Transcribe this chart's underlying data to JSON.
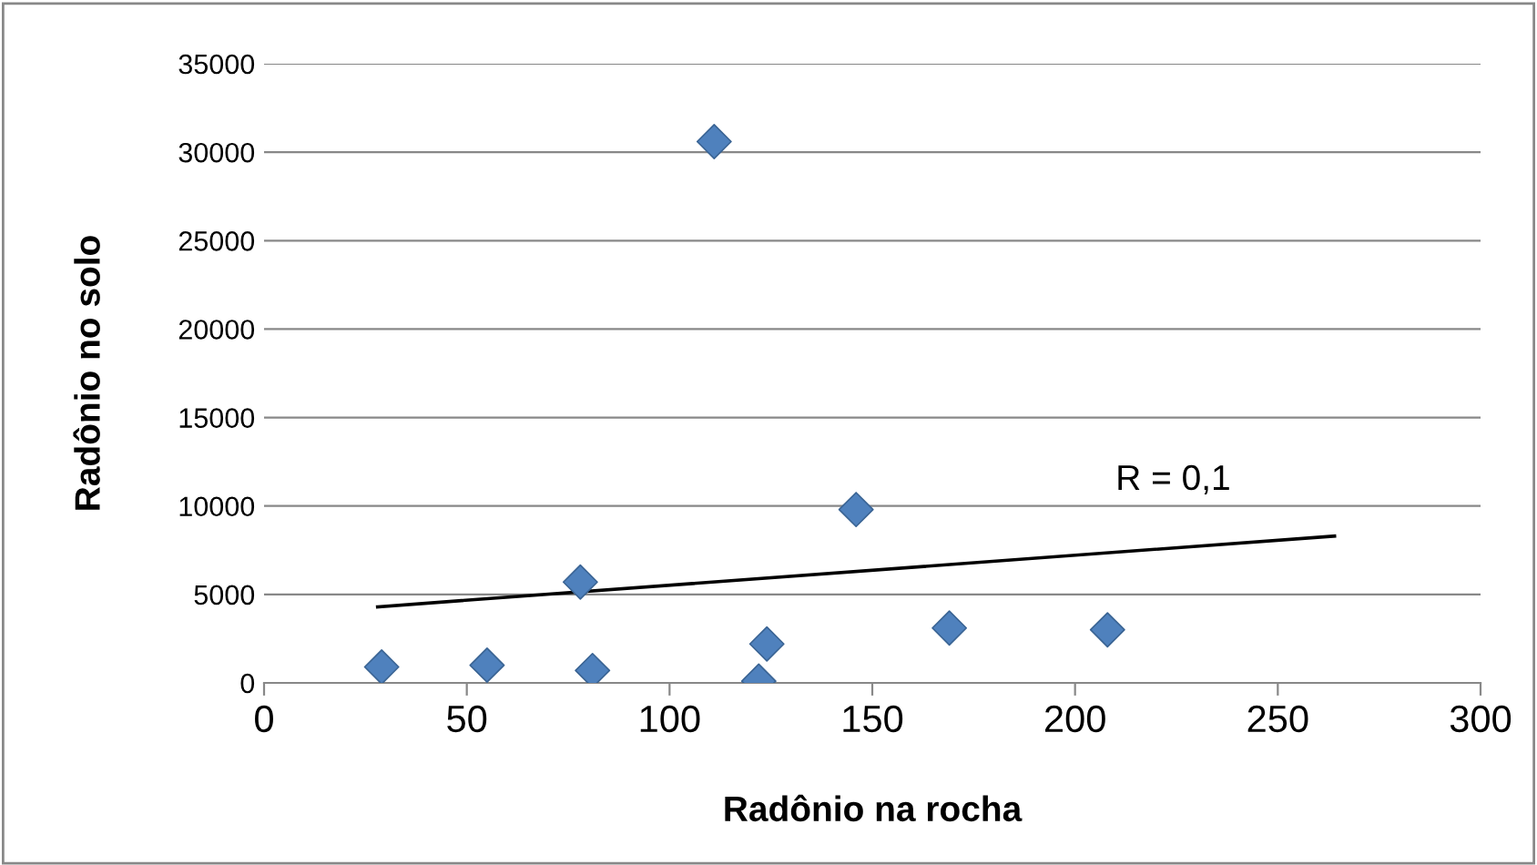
{
  "chart_data": {
    "type": "scatter",
    "xlabel": "Radônio na rocha",
    "ylabel": "Radônio no solo",
    "series": [
      {
        "color": "#4f81bd",
        "marker": "diamond",
        "x": [
          29,
          55,
          78,
          81,
          111,
          122,
          124,
          146,
          169,
          208
        ],
        "values": [
          900,
          1000,
          5700,
          700,
          30600,
          100,
          2200,
          9800,
          3100,
          3000
        ]
      },
      {
        "type": "line",
        "color": "#000000",
        "marker": "none",
        "x": [
          28,
          264
        ],
        "values": [
          4300,
          8300
        ]
      }
    ],
    "annotations": [
      "R = 0,1"
    ],
    "xlim": [
      0,
      300
    ],
    "xticks": [
      0,
      50,
      100,
      150,
      200,
      250,
      300
    ],
    "ylim": [
      0,
      35000
    ],
    "yticks": [
      0,
      5000,
      10000,
      15000,
      20000,
      25000,
      30000,
      35000
    ],
    "grid": "y",
    "legend": false
  }
}
